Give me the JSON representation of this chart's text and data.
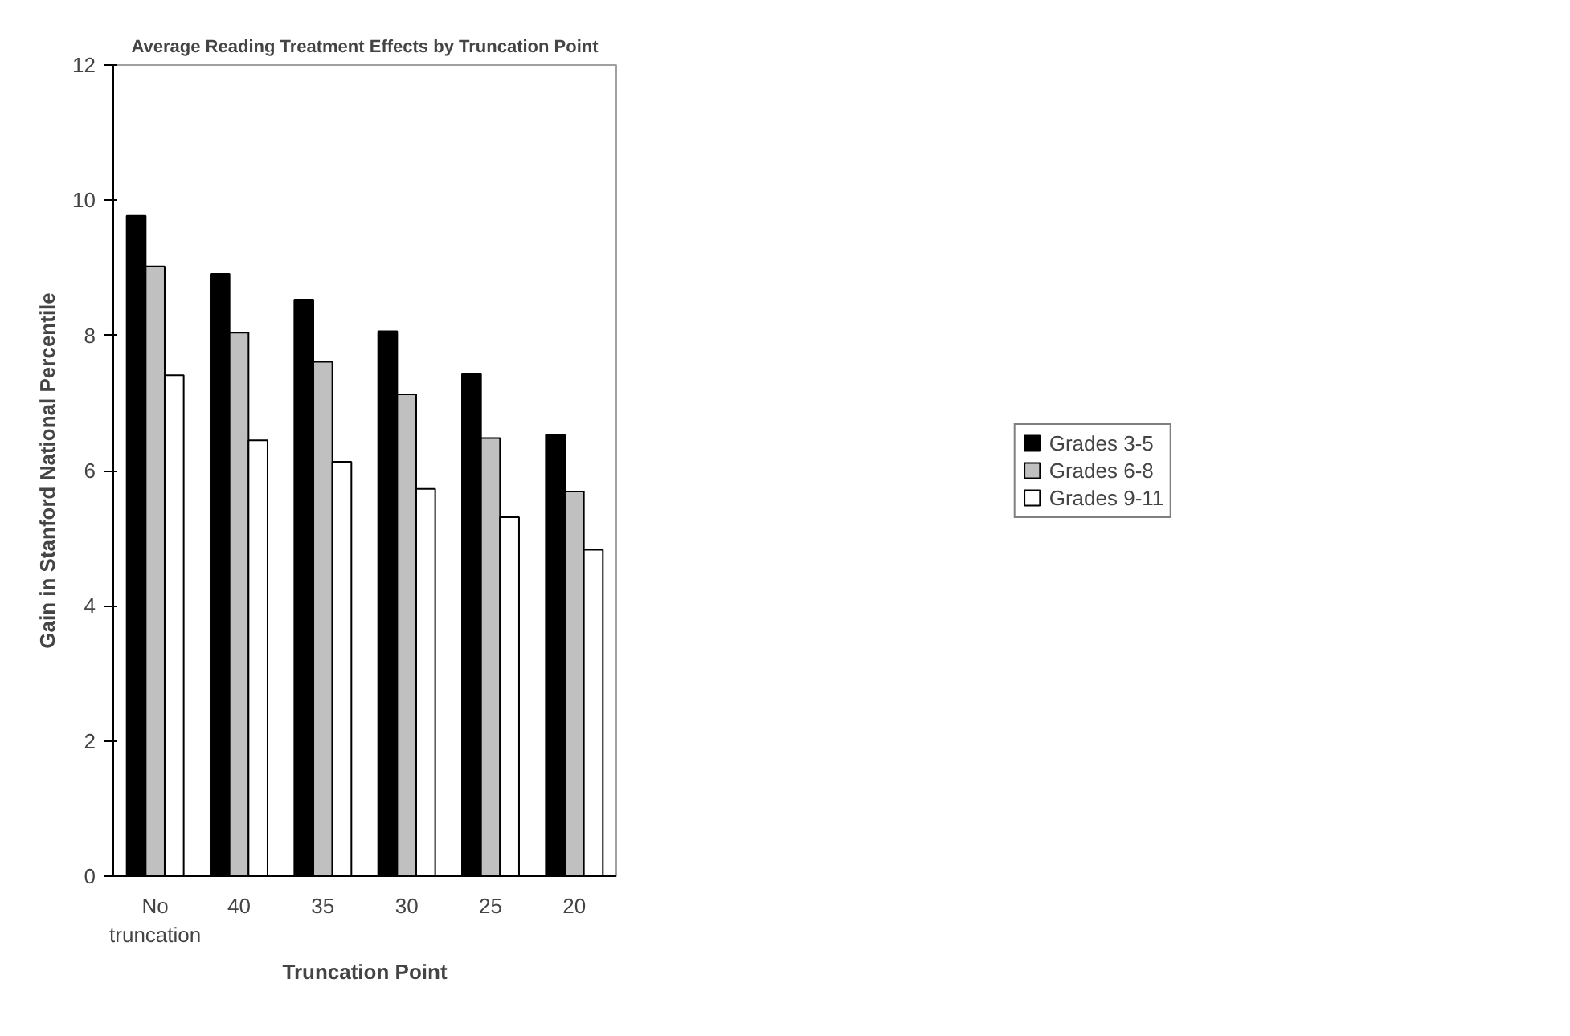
{
  "chart_data": {
    "type": "bar",
    "title": "Average Reading Treatment Effects by Truncation Point",
    "xlabel": "Truncation Point",
    "ylabel": "Gain in Stanford National Percentile",
    "categories": [
      "No\ntruncation",
      "40",
      "35",
      "30",
      "25",
      "20"
    ],
    "series": [
      {
        "name": "Grades 3-5",
        "color": "#000000",
        "values": [
          9.77,
          8.91,
          8.53,
          8.06,
          7.43,
          6.53
        ]
      },
      {
        "name": "Grades 6-8",
        "color": "#c0c0c0",
        "values": [
          9.02,
          8.04,
          7.61,
          7.13,
          6.48,
          5.69
        ]
      },
      {
        "name": "Grades 9-11",
        "color": "#ffffff",
        "values": [
          7.41,
          6.45,
          6.13,
          5.73,
          5.31,
          4.83
        ]
      }
    ],
    "ylim": [
      0,
      12
    ],
    "yticks": [
      0,
      2,
      4,
      6,
      8,
      10,
      12
    ],
    "grid": false,
    "legend": "right"
  }
}
